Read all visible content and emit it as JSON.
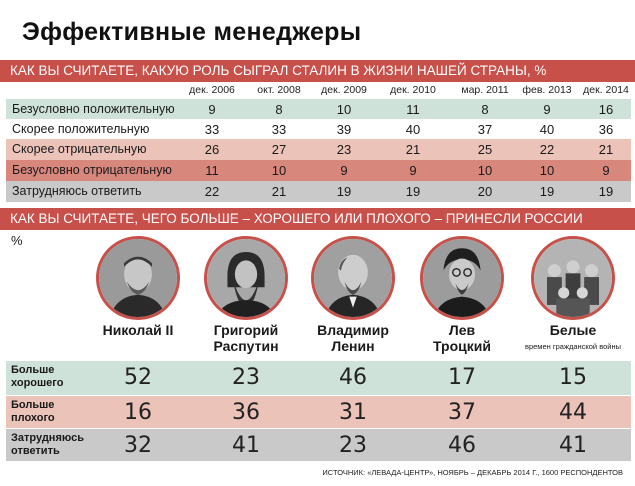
{
  "title": "Эффективные менеджеры",
  "section1": {
    "heading": "КАК ВЫ СЧИТАЕТЕ, КАКУЮ РОЛЬ СЫГРАЛ СТАЛИН В ЖИЗНИ НАШЕЙ СТРАНЫ, %",
    "columns": [
      "дек. 2006",
      "окт. 2008",
      "дек. 2009",
      "дек. 2010",
      "мар. 2011",
      "фев. 2013",
      "дек. 2014"
    ],
    "rows": [
      {
        "label": "Безусловно положительную",
        "values": [
          "9",
          "8",
          "10",
          "11",
          "8",
          "9",
          "16"
        ],
        "color": "#cfe2da"
      },
      {
        "label": "Скорее положительную",
        "values": [
          "33",
          "33",
          "39",
          "40",
          "37",
          "40",
          "36"
        ],
        "color": "#ffffff"
      },
      {
        "label": "Скорее отрицательную",
        "values": [
          "26",
          "27",
          "23",
          "21",
          "25",
          "22",
          "21"
        ],
        "color": "#ecc3b8"
      },
      {
        "label": "Безусловно отрицательную",
        "values": [
          "11",
          "10",
          "9",
          "9",
          "10",
          "10",
          "9"
        ],
        "color": "#d8877c"
      },
      {
        "label": "Затрудняюсь ответить",
        "values": [
          "22",
          "21",
          "19",
          "19",
          "20",
          "19",
          "19"
        ],
        "color": "#c9c9c9"
      }
    ]
  },
  "section2": {
    "heading": "КАК ВЫ СЧИТАЕТЕ, ЧЕГО БОЛЬШЕ –  ХОРОШЕГО ИЛИ ПЛОХОГО – ПРИНЕСЛИ РОССИИ",
    "unit": "%",
    "people": [
      {
        "name": "Николай II",
        "sub": ""
      },
      {
        "name": "Григорий\nРаспутин",
        "sub": ""
      },
      {
        "name": "Владимир\nЛенин",
        "sub": ""
      },
      {
        "name": "Лев\nТроцкий",
        "sub": ""
      },
      {
        "name": "Белые",
        "sub": "времен гражданской войны"
      }
    ],
    "rows": [
      {
        "label": "Больше\nхорошего",
        "values": [
          "52",
          "23",
          "46",
          "17",
          "15"
        ],
        "color": "#cfe2da"
      },
      {
        "label": "Больше\nплохого",
        "values": [
          "16",
          "36",
          "31",
          "37",
          "44"
        ],
        "color": "#ecc3b8"
      },
      {
        "label": "Затрудняюсь\nответить",
        "values": [
          "32",
          "41",
          "23",
          "46",
          "41"
        ],
        "color": "#c9c9c9"
      }
    ]
  },
  "source": "ИСТОЧНИК: «ЛЕВАДА-ЦЕНТР», НОЯБРЬ – ДЕКАБРЬ 2014 Г., 1600 РЕСПОНДЕНТОВ",
  "colors": {
    "accent": "#c8504a",
    "green": "#cfe2da",
    "pink": "#ecc3b8",
    "red": "#d8877c",
    "gray": "#c9c9c9"
  },
  "chart_data": [
    {
      "type": "table",
      "title": "КАК ВЫ СЧИТАЕТЕ, КАКУЮ РОЛЬ СЫГРАЛ СТАЛИН В ЖИЗНИ НАШЕЙ СТРАНЫ, %",
      "categories": [
        "дек. 2006",
        "окт. 2008",
        "дек. 2009",
        "дек. 2010",
        "мар. 2011",
        "фев. 2013",
        "дек. 2014"
      ],
      "series": [
        {
          "name": "Безусловно положительную",
          "values": [
            9,
            8,
            10,
            11,
            8,
            9,
            16
          ]
        },
        {
          "name": "Скорее положительную",
          "values": [
            33,
            33,
            39,
            40,
            37,
            40,
            36
          ]
        },
        {
          "name": "Скорее отрицательную",
          "values": [
            26,
            27,
            23,
            21,
            25,
            22,
            21
          ]
        },
        {
          "name": "Безусловно отрицательную",
          "values": [
            11,
            10,
            9,
            9,
            10,
            10,
            9
          ]
        },
        {
          "name": "Затрудняюсь ответить",
          "values": [
            22,
            21,
            19,
            19,
            20,
            19,
            19
          ]
        }
      ]
    },
    {
      "type": "table",
      "title": "КАК ВЫ СЧИТАЕТЕ, ЧЕГО БОЛЬШЕ –  ХОРОШЕГО ИЛИ ПЛОХОГО – ПРИНЕСЛИ РОССИИ",
      "categories": [
        "Николай II",
        "Григорий Распутин",
        "Владимир Ленин",
        "Лев Троцкий",
        "Белые"
      ],
      "series": [
        {
          "name": "Больше хорошего",
          "values": [
            52,
            23,
            46,
            17,
            15
          ]
        },
        {
          "name": "Больше плохого",
          "values": [
            16,
            36,
            31,
            37,
            44
          ]
        },
        {
          "name": "Затрудняюсь ответить",
          "values": [
            32,
            41,
            23,
            46,
            41
          ]
        }
      ]
    }
  ]
}
